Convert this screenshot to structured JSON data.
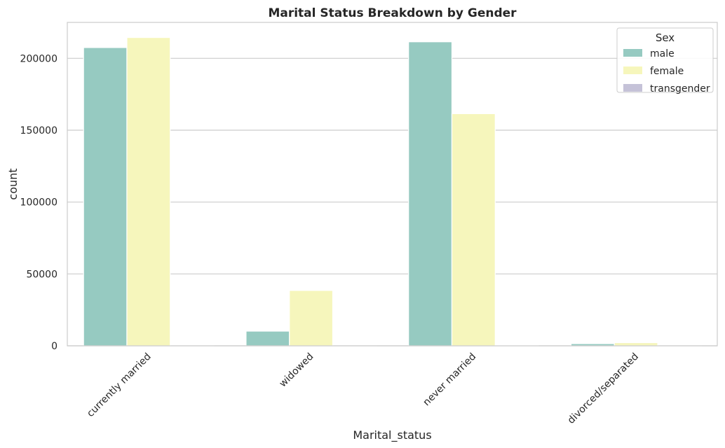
{
  "chart_data": {
    "type": "bar",
    "title": "Marital Status Breakdown by Gender",
    "xlabel": "Marital_status",
    "ylabel": "count",
    "categories": [
      "currently married",
      "widowed",
      "never married",
      "divorced/separated"
    ],
    "series": [
      {
        "name": "male",
        "color": "#96cac1",
        "values": [
          207500,
          10200,
          211500,
          1500
        ]
      },
      {
        "name": "female",
        "color": "#f6f6bc",
        "values": [
          214500,
          38500,
          161500,
          2200
        ]
      },
      {
        "name": "transgender",
        "color": "#c5c2d8",
        "values": [
          80,
          20,
          350,
          15
        ]
      }
    ],
    "yticks": [
      0,
      50000,
      100000,
      150000,
      200000
    ],
    "ylim": [
      0,
      225000
    ],
    "grid": "horizontal",
    "legend": {
      "title": "Sex",
      "placement": "top-right"
    }
  }
}
